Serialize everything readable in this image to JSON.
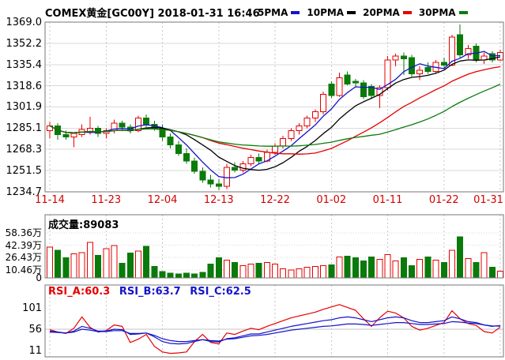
{
  "header": {
    "title": "COMEX黄金[GC00Y] 2018-01-31 16:46"
  },
  "chart_data": {
    "type": "candlestick",
    "title": "COMEX黄金[GC00Y] 2018-01-31 16:46",
    "x_ticks": {
      "labels": [
        "11-14",
        "11-23",
        "12-04",
        "12-13",
        "12-22",
        "01-02",
        "01-11",
        "01-22",
        "01-31"
      ],
      "candle_indices": [
        0,
        7,
        14,
        21,
        28,
        35,
        42,
        49,
        56
      ]
    },
    "price_panel": {
      "y_ticks": [
        1369.0,
        1352.2,
        1335.4,
        1318.6,
        1301.9,
        1285.1,
        1268.3,
        1251.5,
        1234.7
      ],
      "candles_ohlc": [
        [
          1283,
          1290,
          1277,
          1287
        ],
        [
          1287,
          1289,
          1276,
          1280
        ],
        [
          1280,
          1283,
          1276,
          1278
        ],
        [
          1278,
          1282,
          1270,
          1281
        ],
        [
          1280,
          1288,
          1278,
          1284
        ],
        [
          1282,
          1294,
          1280,
          1285
        ],
        [
          1285,
          1287,
          1278,
          1281
        ],
        [
          1281,
          1285,
          1277,
          1283
        ],
        [
          1283,
          1292,
          1281,
          1289
        ],
        [
          1289,
          1291,
          1284,
          1286
        ],
        [
          1286,
          1288,
          1281,
          1283
        ],
        [
          1283,
          1295,
          1282,
          1293
        ],
        [
          1293,
          1296,
          1286,
          1288
        ],
        [
          1288,
          1291,
          1283,
          1285
        ],
        [
          1285,
          1288,
          1275,
          1278
        ],
        [
          1278,
          1281,
          1269,
          1272
        ],
        [
          1272,
          1275,
          1263,
          1265
        ],
        [
          1265,
          1269,
          1257,
          1259
        ],
        [
          1259,
          1262,
          1249,
          1251
        ],
        [
          1251,
          1254,
          1242,
          1244
        ],
        [
          1244,
          1248,
          1238,
          1241
        ],
        [
          1241,
          1245,
          1236,
          1239
        ],
        [
          1239,
          1257,
          1237,
          1254
        ],
        [
          1254,
          1258,
          1250,
          1252
        ],
        [
          1252,
          1259,
          1250,
          1257
        ],
        [
          1257,
          1264,
          1255,
          1262
        ],
        [
          1262,
          1265,
          1257,
          1259
        ],
        [
          1259,
          1268,
          1258,
          1266
        ],
        [
          1266,
          1273,
          1264,
          1271
        ],
        [
          1271,
          1279,
          1269,
          1277
        ],
        [
          1277,
          1285,
          1275,
          1283
        ],
        [
          1283,
          1289,
          1280,
          1287
        ],
        [
          1287,
          1295,
          1285,
          1293
        ],
        [
          1293,
          1300,
          1290,
          1298
        ],
        [
          1298,
          1314,
          1296,
          1312
        ],
        [
          1320,
          1322,
          1309,
          1311
        ],
        [
          1311,
          1329,
          1310,
          1325
        ],
        [
          1327,
          1330,
          1319,
          1320
        ],
        [
          1322,
          1324,
          1317,
          1321
        ],
        [
          1321,
          1323,
          1308,
          1310
        ],
        [
          1318,
          1320,
          1308,
          1311
        ],
        [
          1311,
          1319,
          1301,
          1317
        ],
        [
          1317,
          1342,
          1315,
          1339
        ],
        [
          1339,
          1344,
          1334,
          1342
        ],
        [
          1342,
          1345,
          1327,
          1340
        ],
        [
          1341,
          1343,
          1326,
          1328
        ],
        [
          1328,
          1334,
          1323,
          1331
        ],
        [
          1333,
          1337,
          1328,
          1330
        ],
        [
          1330,
          1339,
          1329,
          1337
        ],
        [
          1337,
          1341,
          1332,
          1335
        ],
        [
          1335,
          1359,
          1334,
          1357
        ],
        [
          1359,
          1367,
          1341,
          1343
        ],
        [
          1343,
          1351,
          1340,
          1348
        ],
        [
          1350,
          1352,
          1337,
          1339
        ],
        [
          1339,
          1345,
          1336,
          1342
        ],
        [
          1344,
          1346,
          1337,
          1339
        ],
        [
          1339,
          1347,
          1338,
          1345
        ]
      ],
      "ma_lines": [
        {
          "label": "5PMA",
          "period": 5,
          "color": "#1414cc"
        },
        {
          "label": "10PMA",
          "period": 10,
          "color": "#000000"
        },
        {
          "label": "20PMA",
          "period": 20,
          "color": "#e60000"
        },
        {
          "label": "30PMA",
          "period": 30,
          "color": "#0a7d0a"
        }
      ]
    },
    "volume_panel": {
      "title": "成交量:",
      "current": "89083",
      "y_ticks": [
        {
          "label": "58.36万",
          "value": 58.36
        },
        {
          "label": "42.39万",
          "value": 42.39
        },
        {
          "label": "26.43万",
          "value": 26.43
        },
        {
          "label": "10.46万",
          "value": 10.46
        },
        {
          "label": "0",
          "value": 0
        }
      ],
      "values_wan": [
        40,
        36,
        26,
        31,
        33,
        46,
        29,
        38,
        42,
        19,
        32,
        35,
        41,
        15,
        8,
        6,
        5,
        6,
        5,
        7,
        18,
        26,
        23,
        20,
        16,
        18,
        19,
        20,
        18,
        12,
        10,
        12,
        14,
        15,
        16,
        17,
        27,
        28,
        26,
        22,
        27,
        24,
        30,
        22,
        26,
        16,
        24,
        27,
        23,
        20,
        36,
        53,
        25,
        20,
        33,
        14,
        8.9
      ]
    },
    "rsi_panel": {
      "labels": [
        {
          "text": "RSI_A:60.3",
          "color": "#e60000"
        },
        {
          "text": "RSI_B:63.7",
          "color": "#1414cc"
        },
        {
          "text": "RSI_C:62.5",
          "color": "#1414cc"
        }
      ],
      "y_ticks": [
        101,
        56,
        11
      ],
      "series": {
        "rsi_a": [
          55,
          50,
          47,
          58,
          82,
          60,
          50,
          53,
          65,
          62,
          28,
          35,
          45,
          20,
          8,
          5,
          6,
          8,
          30,
          45,
          28,
          25,
          48,
          45,
          52,
          58,
          55,
          62,
          68,
          74,
          80,
          84,
          88,
          92,
          98,
          103,
          108,
          102,
          96,
          78,
          62,
          80,
          94,
          90,
          80,
          62,
          54,
          58,
          64,
          70,
          95,
          78,
          68,
          64,
          51,
          48,
          60.3
        ],
        "rsi_b": [
          52,
          50,
          48,
          52,
          62,
          58,
          52,
          52,
          56,
          55,
          45,
          46,
          48,
          40,
          30,
          26,
          25,
          26,
          30,
          34,
          30,
          29,
          36,
          38,
          42,
          46,
          46,
          50,
          54,
          58,
          62,
          65,
          68,
          71,
          74,
          76,
          80,
          82,
          80,
          76,
          72,
          76,
          80,
          82,
          80,
          74,
          70,
          70,
          72,
          74,
          82,
          78,
          72,
          70,
          65,
          62,
          63.7
        ],
        "rsi_c": [
          50,
          49,
          48,
          50,
          56,
          54,
          51,
          51,
          53,
          53,
          47,
          47,
          48,
          43,
          36,
          32,
          30,
          30,
          32,
          34,
          32,
          31,
          35,
          36,
          39,
          42,
          43,
          45,
          48,
          51,
          54,
          56,
          58,
          60,
          62,
          63,
          65,
          67,
          67,
          66,
          64,
          66,
          68,
          70,
          70,
          68,
          66,
          66,
          67,
          68,
          72,
          71,
          69,
          68,
          65,
          63,
          62.5
        ]
      }
    },
    "colors": {
      "up": "#e60000",
      "down": "#0a7a0a",
      "date_label": "#d40000",
      "grid": "#dadada",
      "grid_dash": "#c6c6c6",
      "panel_border": "#777777",
      "text": "#000000"
    }
  }
}
